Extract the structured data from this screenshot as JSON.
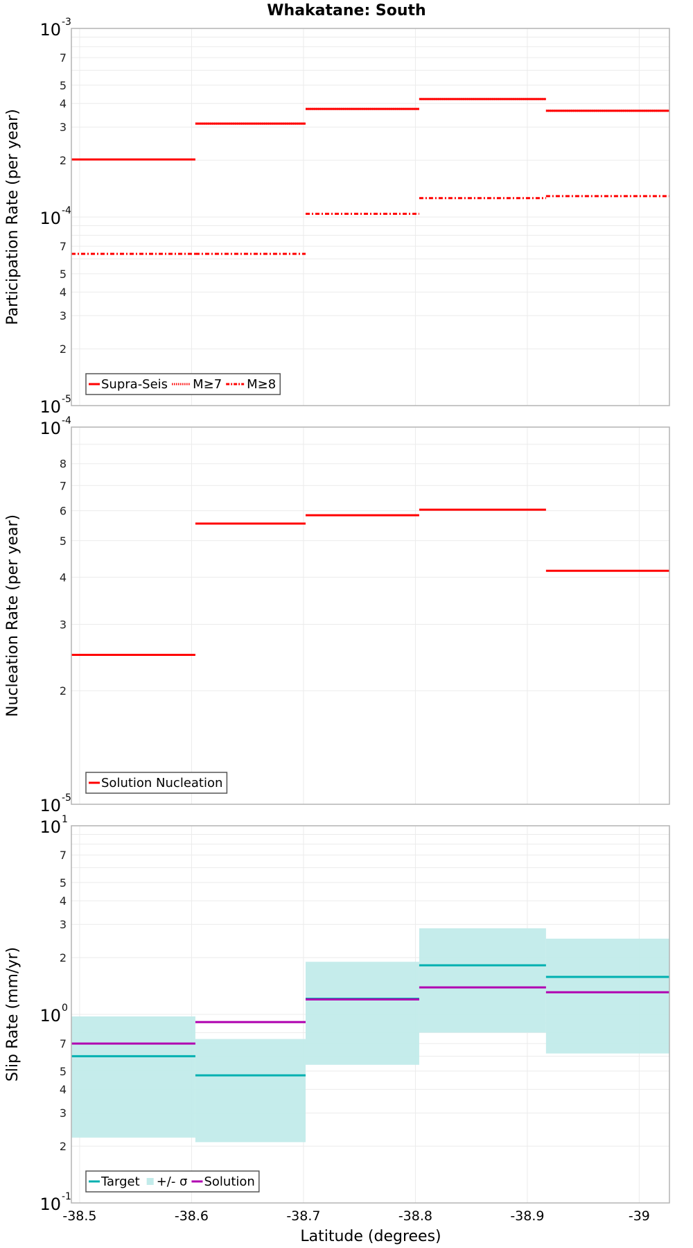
{
  "title": "Whakatane: South",
  "xaxis": {
    "label": "Latitude (degrees)",
    "ticks": [
      "-38.5",
      "-38.6",
      "-38.7",
      "-38.8",
      "-38.9",
      "-39"
    ],
    "tick_values": [
      -38.5,
      -38.6,
      -38.7,
      -38.8,
      -38.9,
      -39.0
    ],
    "range": [
      -38.4926,
      -39.027
    ]
  },
  "segment_edges": [
    -38.4926,
    -38.6034,
    -38.7019,
    -38.8034,
    -38.9167,
    -39.027
  ],
  "colors": {
    "rate": "#ff0000",
    "target": "#00b0b0",
    "sigma_band": "#c2ebea",
    "solution": "#b000b0",
    "grid": "#ebebeb",
    "frame": "#b4b4b4"
  },
  "chart_data": [
    {
      "type": "line",
      "step": true,
      "title": "Whakatane: South",
      "xlabel": "Latitude (degrees)",
      "ylabel": "Participation Rate (per year)",
      "yscale": "log",
      "ylim": [
        1e-05,
        0.001
      ],
      "y_major_ticks": [
        {
          "base": "10",
          "exp": "-3",
          "value": 0.001
        },
        {
          "base": "10",
          "exp": "-4",
          "value": 0.0001
        },
        {
          "base": "10",
          "exp": "-5",
          "value": 1e-05
        }
      ],
      "y_minor_labels": [
        "7",
        "5",
        "4",
        "3",
        "2"
      ],
      "grid": true,
      "legend_position": "lower left",
      "legend": [
        "Supra-Seis",
        "M≥7",
        "M≥8"
      ],
      "x_segments": [
        [
          -38.4926,
          -38.6034
        ],
        [
          -38.6034,
          -38.7019
        ],
        [
          -38.7019,
          -38.8034
        ],
        [
          -38.8034,
          -38.9167
        ],
        [
          -38.9167,
          -39.027
        ]
      ],
      "series": [
        {
          "name": "Supra-Seis",
          "style": "solid",
          "values": [
            0.000202,
            0.000313,
            0.000374,
            0.000422,
            0.000366
          ]
        },
        {
          "name": "M≥7",
          "style": "dotted",
          "values": [
            0.000202,
            0.000313,
            0.000374,
            0.000422,
            0.000366
          ]
        },
        {
          "name": "M≥8",
          "style": "dashdot",
          "values": [
            6.38e-05,
            6.38e-05,
            0.000104,
            0.000126,
            0.000129
          ]
        }
      ]
    },
    {
      "type": "line",
      "step": true,
      "xlabel": "Latitude (degrees)",
      "ylabel": "Nucleation Rate (per year)",
      "yscale": "log",
      "ylim": [
        1e-05,
        0.0001
      ],
      "y_major_ticks": [
        {
          "base": "10",
          "exp": "-4",
          "value": 0.0001
        },
        {
          "base": "10",
          "exp": "-5",
          "value": 1e-05
        }
      ],
      "y_minor_labels": [
        "8",
        "7",
        "6",
        "5",
        "4",
        "3",
        "2"
      ],
      "grid": true,
      "legend_position": "lower left",
      "legend": [
        "Solution Nucleation"
      ],
      "x_segments": [
        [
          -38.4926,
          -38.6034
        ],
        [
          -38.6034,
          -38.7019
        ],
        [
          -38.7019,
          -38.8034
        ],
        [
          -38.8034,
          -38.9167
        ],
        [
          -38.9167,
          -39.027
        ]
      ],
      "series": [
        {
          "name": "Solution Nucleation",
          "style": "solid",
          "values": [
            2.49e-05,
            5.55e-05,
            5.84e-05,
            6.04e-05,
            4.16e-05
          ]
        }
      ]
    },
    {
      "type": "line",
      "step": true,
      "xlabel": "Latitude (degrees)",
      "ylabel": "Slip Rate (mm/yr)",
      "yscale": "log",
      "ylim": [
        0.1,
        10
      ],
      "y_major_ticks": [
        {
          "base": "10",
          "exp": "1",
          "value": 10
        },
        {
          "base": "10",
          "exp": "0",
          "value": 1
        },
        {
          "base": "10",
          "exp": "-1",
          "value": 0.1
        }
      ],
      "y_minor_labels": [
        "7",
        "5",
        "4",
        "3",
        "2"
      ],
      "grid": true,
      "legend_position": "lower left",
      "legend": [
        "Target",
        "+/- σ",
        "Solution"
      ],
      "x_segments": [
        [
          -38.4926,
          -38.6034
        ],
        [
          -38.6034,
          -38.7019
        ],
        [
          -38.7019,
          -38.8034
        ],
        [
          -38.8034,
          -38.9167
        ],
        [
          -38.9167,
          -39.027
        ]
      ],
      "series": [
        {
          "name": "Target",
          "style": "solid",
          "values": [
            0.6,
            0.475,
            1.21,
            1.82,
            1.58
          ]
        },
        {
          "name": "+/- σ",
          "style": "band",
          "upper": [
            0.975,
            0.74,
            1.9,
            2.86,
            2.52
          ],
          "lower": [
            0.222,
            0.21,
            0.54,
            0.8,
            0.62
          ]
        },
        {
          "name": "Solution",
          "style": "solid",
          "values": [
            0.7,
            0.91,
            1.2,
            1.39,
            1.31
          ]
        }
      ]
    }
  ]
}
